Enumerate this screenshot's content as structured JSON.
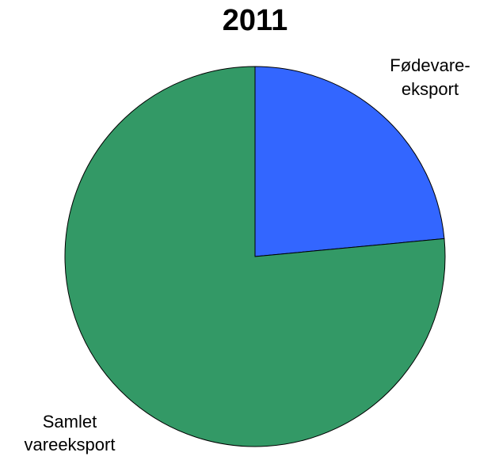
{
  "chart_data": {
    "type": "pie",
    "title": "2011",
    "slices": [
      {
        "label_lines": [
          "Fødevare-",
          "eksport"
        ],
        "value": 23.5,
        "color": "#3366FF"
      },
      {
        "label_lines": [
          "Samlet",
          "vareeksport"
        ],
        "value": 76.5,
        "color": "#339966"
      }
    ],
    "start_angle_deg": 0,
    "direction": "clockwise",
    "legend": "none"
  }
}
